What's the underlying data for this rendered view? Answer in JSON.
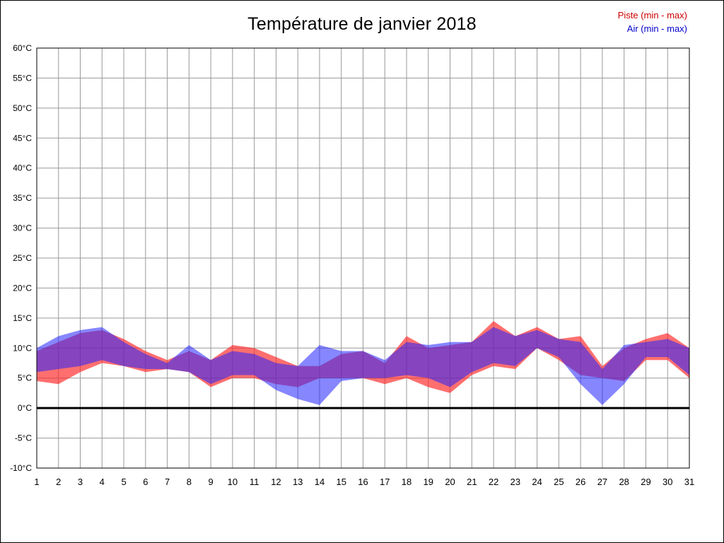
{
  "title": "Température de janvier 2018",
  "legend": {
    "piste": "Piste (min - max)",
    "air": "Air (min - max)",
    "piste_color": "#cc0000",
    "air_color": "#0000cc"
  },
  "chart_data": {
    "type": "area",
    "title": "Température de janvier 2018",
    "xlabel": "",
    "ylabel": "",
    "unit": "°C",
    "x": [
      1,
      2,
      3,
      4,
      5,
      6,
      7,
      8,
      9,
      10,
      11,
      12,
      13,
      14,
      15,
      16,
      17,
      18,
      19,
      20,
      21,
      22,
      23,
      24,
      25,
      26,
      27,
      28,
      29,
      30,
      31
    ],
    "ylim": [
      -10,
      60
    ],
    "ytick_step": 5,
    "grid": true,
    "grid_color": "#999999",
    "zero_line": true,
    "zero_line_color": "#000000",
    "legend_position": "top-right",
    "series": [
      {
        "name": "Piste (min - max)",
        "color": "#ff2222",
        "opacity": 0.65,
        "min": [
          4.5,
          4,
          6,
          7.5,
          7,
          6,
          6.5,
          6,
          3.5,
          5,
          5,
          4,
          3.5,
          5,
          5,
          5,
          4,
          5,
          3.5,
          2.5,
          5.5,
          7,
          6.5,
          10,
          8,
          5.5,
          5,
          4.5,
          8,
          8,
          5
        ],
        "max": [
          9.5,
          11,
          12.5,
          13,
          11.5,
          9.5,
          8,
          9.5,
          8,
          10.5,
          10,
          8.5,
          7,
          7,
          9,
          9.5,
          7.5,
          12,
          10,
          10.5,
          11,
          14.5,
          12,
          13.5,
          11.5,
          12,
          7,
          10,
          11.5,
          12.5,
          10
        ]
      },
      {
        "name": "Air (min - max)",
        "color": "#2222ff",
        "opacity": 0.55,
        "min": [
          6,
          6.5,
          7,
          8,
          7,
          6.5,
          6.5,
          6,
          4,
          5.5,
          5.5,
          3,
          1.5,
          0.5,
          4.5,
          5,
          5,
          5.5,
          5,
          3.5,
          6,
          7.5,
          7,
          10,
          8.5,
          4,
          0.5,
          4,
          8.5,
          8.5,
          5.5
        ],
        "max": [
          10,
          12,
          13,
          13.5,
          11,
          9,
          7.5,
          10.5,
          8,
          9.5,
          9,
          7.5,
          7,
          10.5,
          9.5,
          9.5,
          8,
          11,
          10.5,
          11,
          11,
          13.5,
          12,
          13,
          11.5,
          11,
          6.5,
          10.5,
          11,
          11.5,
          10
        ]
      }
    ]
  }
}
